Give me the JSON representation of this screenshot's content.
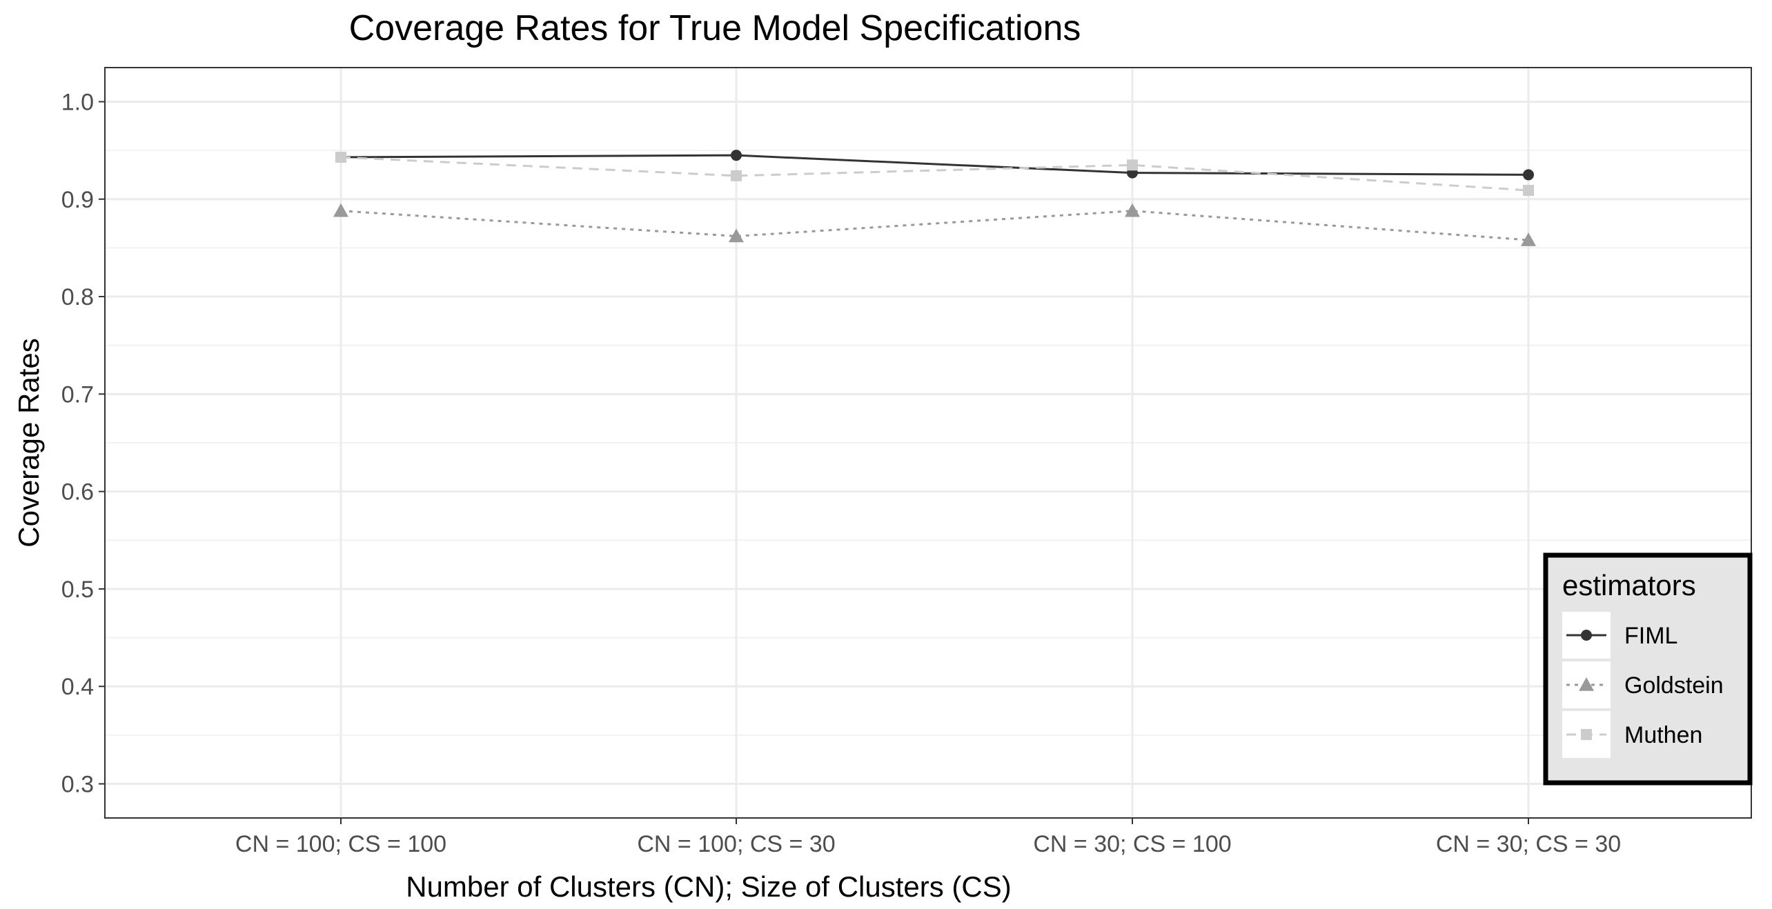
{
  "chart_data": {
    "type": "line",
    "title": "Coverage Rates for True Model Specifications",
    "xlabel": "Number of Clusters (CN); Size of Clusters (CS)",
    "ylabel": "Coverage Rates",
    "categories": [
      "CN = 100; CS = 100",
      "CN = 100; CS = 30",
      "CN = 30; CS = 100",
      "CN = 30; CS = 30"
    ],
    "ylim": [
      0.265,
      1.035
    ],
    "yticks": [
      0.3,
      0.4,
      0.5,
      0.6,
      0.7,
      0.8,
      0.9,
      1.0
    ],
    "ytick_labels": [
      "0.3",
      "0.4",
      "0.5",
      "0.6",
      "0.7",
      "0.8",
      "0.9",
      "1.0"
    ],
    "grid": true,
    "legend": {
      "title": "estimators",
      "position": "bottom-right"
    },
    "series": [
      {
        "name": "FIML",
        "values": [
          0.943,
          0.945,
          0.927,
          0.925
        ],
        "color": "#333333",
        "linestyle": "solid",
        "marker": "circle"
      },
      {
        "name": "Goldstein",
        "values": [
          0.888,
          0.862,
          0.888,
          0.858
        ],
        "color": "#999999",
        "linestyle": "dotted",
        "marker": "triangle"
      },
      {
        "name": "Muthen",
        "values": [
          0.943,
          0.924,
          0.935,
          0.909
        ],
        "color": "#cccccc",
        "linestyle": "dashed",
        "marker": "square"
      }
    ]
  }
}
